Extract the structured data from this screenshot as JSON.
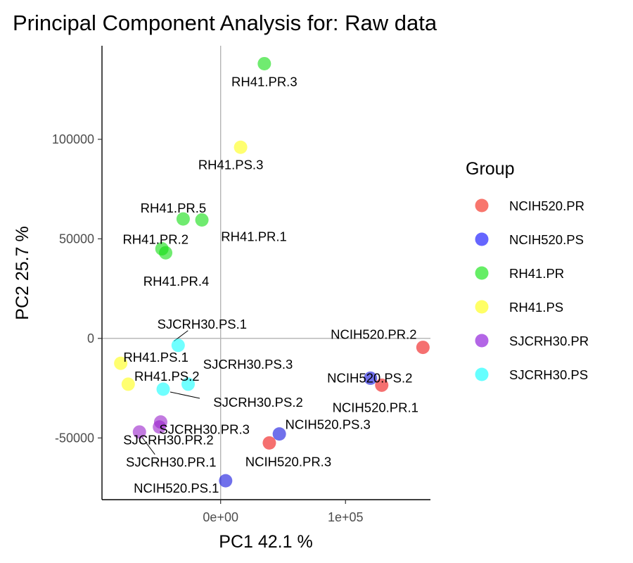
{
  "chart_data": {
    "type": "scatter",
    "title": "Principal Component Analysis for:  Raw data",
    "xlabel": "PC1 42.1 %",
    "ylabel": "PC2 25.7 %",
    "xlim": [
      -95000,
      168000
    ],
    "ylim": [
      -81000,
      147000
    ],
    "x_ticks": [
      {
        "value": 0,
        "label": "0e+00"
      },
      {
        "value": 100000,
        "label": "1e+05"
      }
    ],
    "y_ticks": [
      {
        "value": -50000,
        "label": "-50000"
      },
      {
        "value": 0,
        "label": "0"
      },
      {
        "value": 50000,
        "label": "50000"
      },
      {
        "value": 100000,
        "label": "100000"
      }
    ],
    "reference_lines": {
      "x": 0,
      "y": 0
    },
    "grid": false,
    "legend": {
      "title": "Group",
      "position": "right",
      "entries": [
        {
          "name": "NCIH520.PR",
          "color": "#F8766D"
        },
        {
          "name": "NCIH520.PS",
          "color": "#6666FF"
        },
        {
          "name": "RH41.PR",
          "color": "#66EE66"
        },
        {
          "name": "RH41.PS",
          "color": "#FFFF66"
        },
        {
          "name": "SJCRH30.PR",
          "color": "#B366E6"
        },
        {
          "name": "SJCRH30.PS",
          "color": "#66FFFF"
        }
      ]
    },
    "point_colors": {
      "NCIH520.PR": "#EE1111",
      "NCIH520.PS": "#1111DD",
      "RH41.PR": "#11DD11",
      "RH41.PS": "#FFFF11",
      "SJCRH30.PR": "#9922CC",
      "SJCRH30.PS": "#11FFFF"
    },
    "points": [
      {
        "label": "RH41.PR.3",
        "group": "RH41.PR",
        "x": 35000,
        "y": 138000
      },
      {
        "label": "RH41.PS.3",
        "group": "RH41.PS",
        "x": 16000,
        "y": 96000
      },
      {
        "label": "RH41.PR.5",
        "group": "RH41.PR",
        "x": -30000,
        "y": 60000
      },
      {
        "label": "RH41.PR.1",
        "group": "RH41.PR",
        "x": -15000,
        "y": 59500
      },
      {
        "label": "RH41.PR.2",
        "group": "RH41.PR",
        "x": -47000,
        "y": 45000
      },
      {
        "label": "RH41.PR.4",
        "group": "RH41.PR",
        "x": -44000,
        "y": 43000
      },
      {
        "label": "SJCRH30.PS.1",
        "group": "SJCRH30.PS",
        "x": -34000,
        "y": -3500
      },
      {
        "label": "RH41.PS.1",
        "group": "RH41.PS",
        "x": -80000,
        "y": -12500
      },
      {
        "label": "RH41.PS.2",
        "group": "RH41.PS",
        "x": -74000,
        "y": -23000
      },
      {
        "label": "SJCRH30.PS.3",
        "group": "SJCRH30.PS",
        "x": -26000,
        "y": -23000
      },
      {
        "label": "SJCRH30.PS.2",
        "group": "SJCRH30.PS",
        "x": -46000,
        "y": -25500
      },
      {
        "label": "SJCRH30.PR.2",
        "group": "SJCRH30.PR",
        "x": -48000,
        "y": -42000
      },
      {
        "label": "SJCRH30.PR.3",
        "group": "SJCRH30.PR",
        "x": -49000,
        "y": -44500
      },
      {
        "label": "SJCRH30.PR.1",
        "group": "SJCRH30.PR",
        "x": -65000,
        "y": -47000
      },
      {
        "label": "NCIH520.PR.2",
        "group": "NCIH520.PR",
        "x": 162000,
        "y": -4500
      },
      {
        "label": "NCIH520.PS.2",
        "group": "NCIH520.PS",
        "x": 120000,
        "y": -20000
      },
      {
        "label": "NCIH520.PR.1",
        "group": "NCIH520.PR",
        "x": 129000,
        "y": -23500
      },
      {
        "label": "NCIH520.PS.3",
        "group": "NCIH520.PS",
        "x": 47000,
        "y": -48000
      },
      {
        "label": "NCIH520.PR.3",
        "group": "NCIH520.PR",
        "x": 39000,
        "y": -52500
      },
      {
        "label": "NCIH520.PS.1",
        "group": "NCIH520.PS",
        "x": 4000,
        "y": -71500
      }
    ]
  }
}
